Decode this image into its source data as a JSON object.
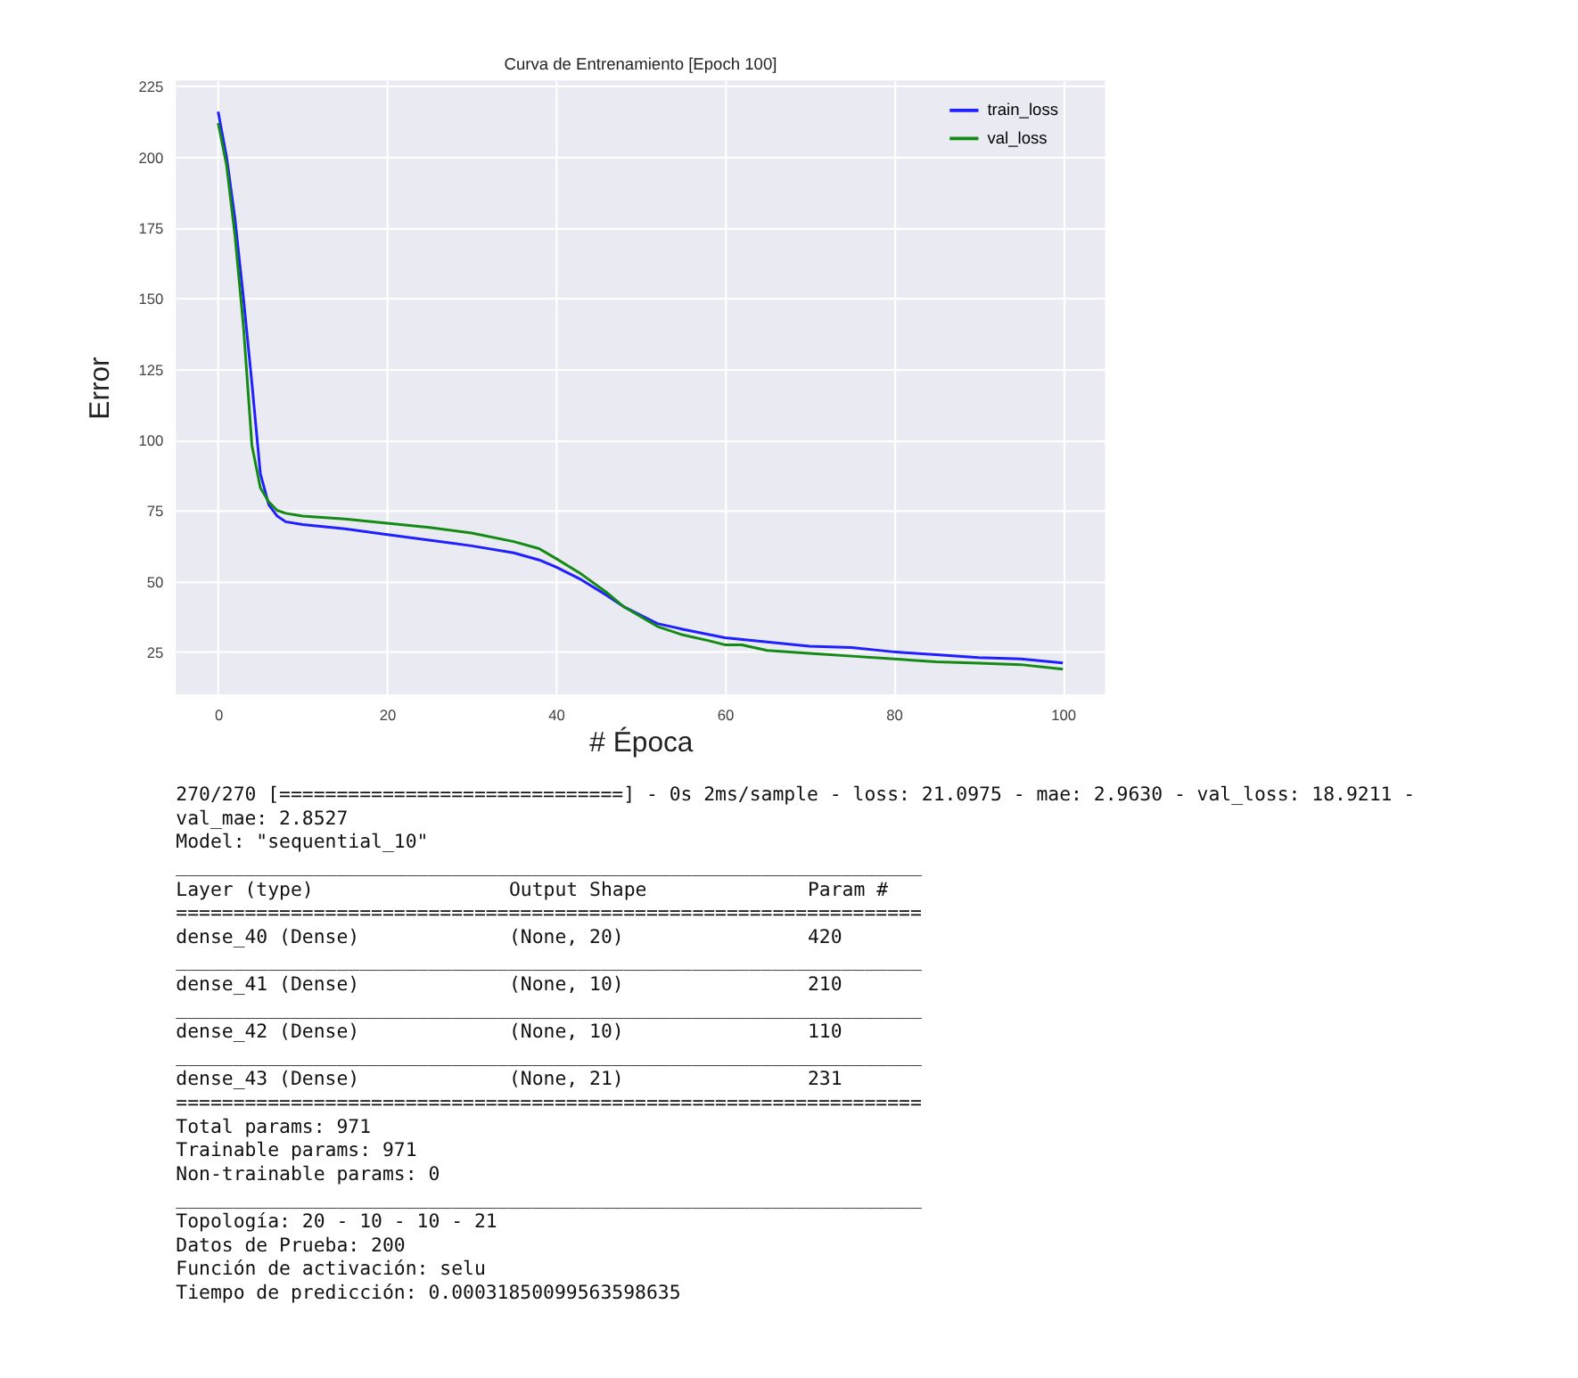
{
  "chart_data": {
    "type": "line",
    "title": "Curva de Entrenamiento [Epoch 100]",
    "xlabel": "# Época",
    "ylabel": "Error",
    "xlim": [
      -5,
      105
    ],
    "xticks": [
      0,
      20,
      40,
      60,
      80,
      100
    ],
    "ylim": [
      10,
      227
    ],
    "yticks": [
      25,
      50,
      75,
      100,
      125,
      150,
      175,
      200,
      225
    ],
    "grid": true,
    "legend": "top right",
    "line_style": "solid",
    "marker": "none",
    "series": [
      {
        "name": "train_loss",
        "color": "#1f1fff",
        "x": [
          0,
          1,
          2,
          3,
          4,
          5,
          6,
          7,
          8,
          10,
          15,
          20,
          25,
          30,
          35,
          38,
          40,
          43,
          46,
          48,
          50,
          52,
          55,
          60,
          65,
          70,
          75,
          80,
          85,
          90,
          95,
          100
        ],
        "values": [
          216,
          200,
          178,
          150,
          120,
          88,
          77,
          73,
          71,
          70,
          68.5,
          66.5,
          64.5,
          62.5,
          60,
          57.5,
          55,
          50.5,
          45,
          41,
          38,
          35,
          33,
          30,
          28.5,
          27,
          26.5,
          25,
          24,
          23,
          22.5,
          21.1
        ]
      },
      {
        "name": "val_loss",
        "color": "#138a13",
        "x": [
          0,
          1,
          2,
          3,
          4,
          5,
          6,
          7,
          8,
          10,
          15,
          20,
          25,
          30,
          35,
          38,
          40,
          43,
          46,
          48,
          50,
          52,
          55,
          58,
          60,
          62,
          65,
          70,
          75,
          80,
          85,
          90,
          95,
          100
        ],
        "values": [
          212,
          197,
          172,
          140,
          98,
          83,
          78,
          75,
          74,
          73,
          72,
          70.5,
          69,
          67,
          64,
          61.5,
          58,
          52.5,
          46,
          41,
          37.5,
          34,
          31,
          29,
          27.5,
          27.5,
          25.5,
          24.5,
          23.5,
          22.5,
          21.5,
          21,
          20.5,
          18.9
        ]
      }
    ],
    "annotations": [
      "270/270 [==============================] - 0s 2ms/sample - loss: 21.0975 - mae: 2.9630 - val_loss: 18.9211 -",
      "val_mae: 2.8527",
      "Model: \"sequential_10\"",
      "_________________________________________________________________",
      "Layer (type)                 Output Shape              Param #",
      "=================================================================",
      "dense_40 (Dense)             (None, 20)                420",
      "_________________________________________________________________",
      "dense_41 (Dense)             (None, 10)                210",
      "_________________________________________________________________",
      "dense_42 (Dense)             (None, 10)                110",
      "_________________________________________________________________",
      "dense_43 (Dense)             (None, 21)                231",
      "=================================================================",
      "Total params: 971",
      "Trainable params: 971",
      "Non-trainable params: 0",
      "_________________________________________________________________",
      "Topología: 20 - 10 - 10 - 21",
      "Datos de Prueba: 200",
      "Función de activación: selu",
      "Tiempo de predicción: 0.00031850099563598635"
    ]
  }
}
